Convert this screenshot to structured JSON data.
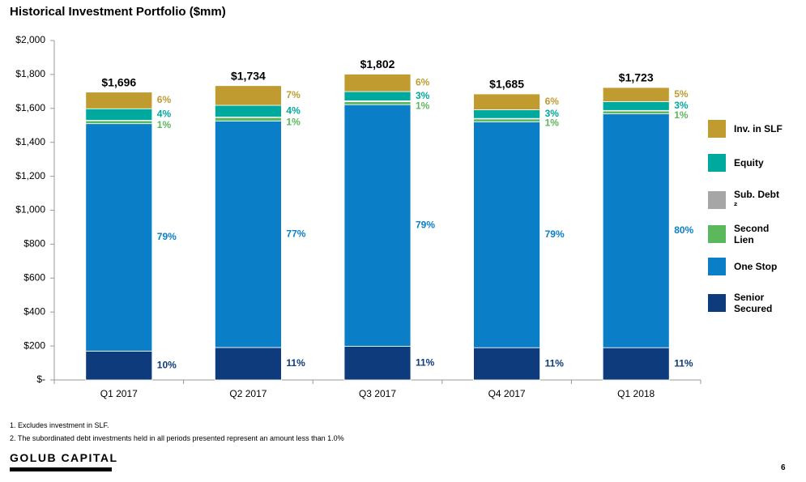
{
  "chart_data": {
    "type": "stacked_bar",
    "title": "Historical Investment Portfolio ($mm)",
    "categories": [
      "Q1 2017",
      "Q2 2017",
      "Q3 2017",
      "Q4 2017",
      "Q1 2018"
    ],
    "series": [
      {
        "name": "Senior Secured",
        "color": "#0d3b7c",
        "values": [
          170,
          191,
          198,
          190,
          190
        ],
        "value_labels": [
          "10%",
          "11%",
          "11%",
          "11%",
          "11%"
        ]
      },
      {
        "name": "One Stop",
        "color": "#0a7fc8",
        "values": [
          1340,
          1335,
          1424,
          1331,
          1378
        ],
        "value_labels": [
          "79%",
          "77%",
          "79%",
          "79%",
          "80%"
        ]
      },
      {
        "name": "Second Lien",
        "color": "#5cb85c",
        "values": [
          17,
          20,
          18,
          17,
          17
        ],
        "value_labels": [
          "1%",
          "1%",
          "1%",
          "1%",
          "1%"
        ]
      },
      {
        "name": "Sub. Debt ²",
        "color": "#a6a6a6",
        "values": [
          3,
          3,
          5,
          3,
          3
        ]
      },
      {
        "name": "Equity",
        "color": "#00a99d",
        "values": [
          68,
          69,
          54,
          51,
          52
        ],
        "value_labels": [
          "4%",
          "4%",
          "3%",
          "3%",
          "3%"
        ]
      },
      {
        "name": "Inv. in SLF",
        "color": "#bf9b30",
        "values": [
          98,
          116,
          103,
          93,
          83
        ],
        "value_labels": [
          "6%",
          "7%",
          "6%",
          "6%",
          "5%"
        ]
      }
    ],
    "totals": {
      "values": [
        1696,
        1734,
        1802,
        1685,
        1723
      ],
      "labels": [
        "$1,696",
        "$1,734",
        "$1,802",
        "$1,685",
        "$1,723"
      ]
    },
    "ylim": [
      0,
      2000
    ],
    "yticks": [
      {
        "value": 0,
        "label": "$-"
      },
      {
        "value": 200,
        "label": "$200"
      },
      {
        "value": 400,
        "label": "$400"
      },
      {
        "value": 600,
        "label": "$600"
      },
      {
        "value": 800,
        "label": "$800"
      },
      {
        "value": 1000,
        "label": "$1,000"
      },
      {
        "value": 1200,
        "label": "$1,200"
      },
      {
        "value": 1400,
        "label": "$1,400"
      },
      {
        "value": 1600,
        "label": "$1,600"
      },
      {
        "value": 1800,
        "label": "$1,800"
      },
      {
        "value": 2000,
        "label": "$2,000"
      }
    ],
    "grid": false,
    "legend": "right"
  },
  "footnotes": [
    "1. Excludes investment in SLF.",
    "2. The subordinated debt investments held in all periods presented represent an amount less than 1.0%"
  ],
  "brand": "GOLUB CAPITAL",
  "page_number": 6
}
